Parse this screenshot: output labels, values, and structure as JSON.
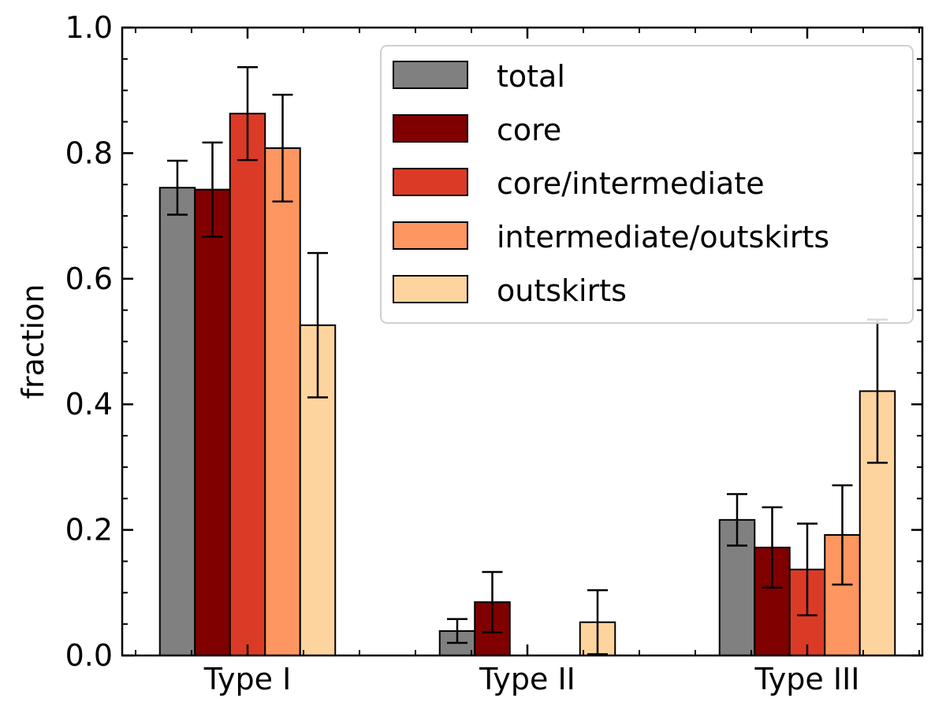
{
  "chart_data": {
    "type": "bar",
    "categories": [
      "Type I",
      "Type II",
      "Type III"
    ],
    "ylabel": "fraction",
    "xlabel": "",
    "ylim": [
      0,
      1.0
    ],
    "yticks": [
      "0.0",
      "0.2",
      "0.4",
      "0.6",
      "0.8",
      "1.0"
    ],
    "legend_position": "upper-right",
    "series": [
      {
        "name": "total",
        "color": "#808080",
        "values": [
          0.745,
          0.039,
          0.216
        ],
        "errors": [
          0.043,
          0.019,
          0.041
        ]
      },
      {
        "name": "core",
        "color": "#800000",
        "values": [
          0.742,
          0.085,
          0.172
        ],
        "errors": [
          0.075,
          0.048,
          0.064
        ]
      },
      {
        "name": "core/intermediate",
        "color": "#db3b26",
        "values": [
          0.863,
          0.0,
          0.137
        ],
        "errors": [
          0.074,
          0.0,
          0.073
        ]
      },
      {
        "name": "intermediate/outskirts",
        "color": "#fd9660",
        "values": [
          0.808,
          0.0,
          0.192
        ],
        "errors": [
          0.085,
          0.0,
          0.079
        ]
      },
      {
        "name": "outskirts",
        "color": "#fdd49e",
        "values": [
          0.526,
          0.053,
          0.421
        ],
        "errors": [
          0.115,
          0.051,
          0.114
        ]
      }
    ]
  }
}
